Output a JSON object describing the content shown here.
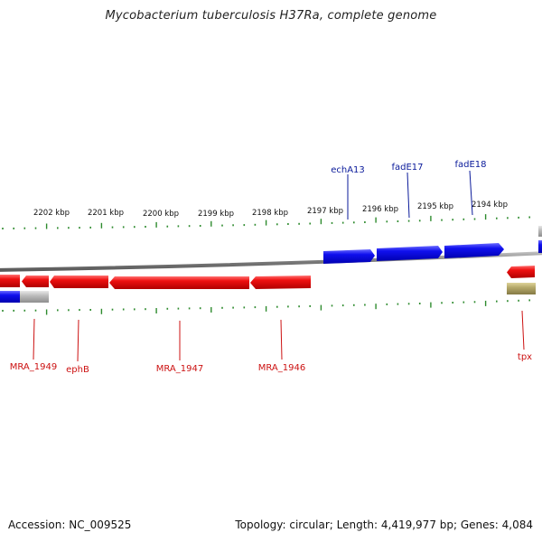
{
  "title": "Mycobacterium tuberculosis H37Ra, complete genome",
  "footer": {
    "accession": "Accession: NC_009525",
    "summary": "Topology: circular; Length: 4,419,977 bp; Genes: 4,084"
  },
  "colors": {
    "forward_gene": "#0000ee",
    "reverse_gene": "#ee0000",
    "rna_or_pseudo": "#b5a96a",
    "other": "#b0b0b0",
    "backbone": "#808080",
    "ticks": "#2e8b2e",
    "forward_label": "#0a1a9a",
    "reverse_label": "#cc1111"
  },
  "scale": {
    "unit": "kbp",
    "ticks": [
      "2202 kbp",
      "2201 kbp",
      "2200 kbp",
      "2199 kbp",
      "2198 kbp",
      "2197 kbp",
      "2196 kbp",
      "2195 kbp",
      "2194 kbp"
    ]
  },
  "genes_forward": [
    {
      "name": "echA13"
    },
    {
      "name": "fadE17"
    },
    {
      "name": "fadE18"
    }
  ],
  "genes_reverse": [
    {
      "name": "MRA_1949"
    },
    {
      "name": "ephB"
    },
    {
      "name": "MRA_1947"
    },
    {
      "name": "MRA_1946"
    },
    {
      "name": "tpx"
    }
  ]
}
